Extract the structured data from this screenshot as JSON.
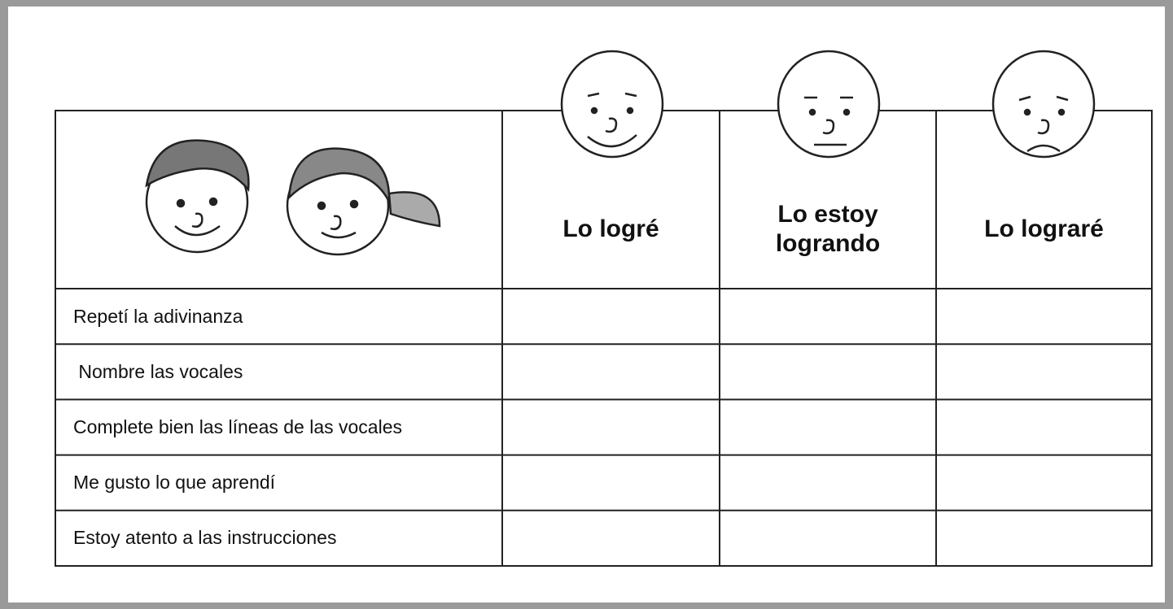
{
  "table": {
    "columns": [
      "Lo logré",
      "Lo estoy logrando",
      "Lo lograré"
    ],
    "rows": [
      "Repetí la adivinanza",
      " Nombre las vocales",
      "Complete bien las líneas de las vocales",
      "Me gusto lo que aprendí",
      "Estoy atento a las instrucciones"
    ]
  }
}
